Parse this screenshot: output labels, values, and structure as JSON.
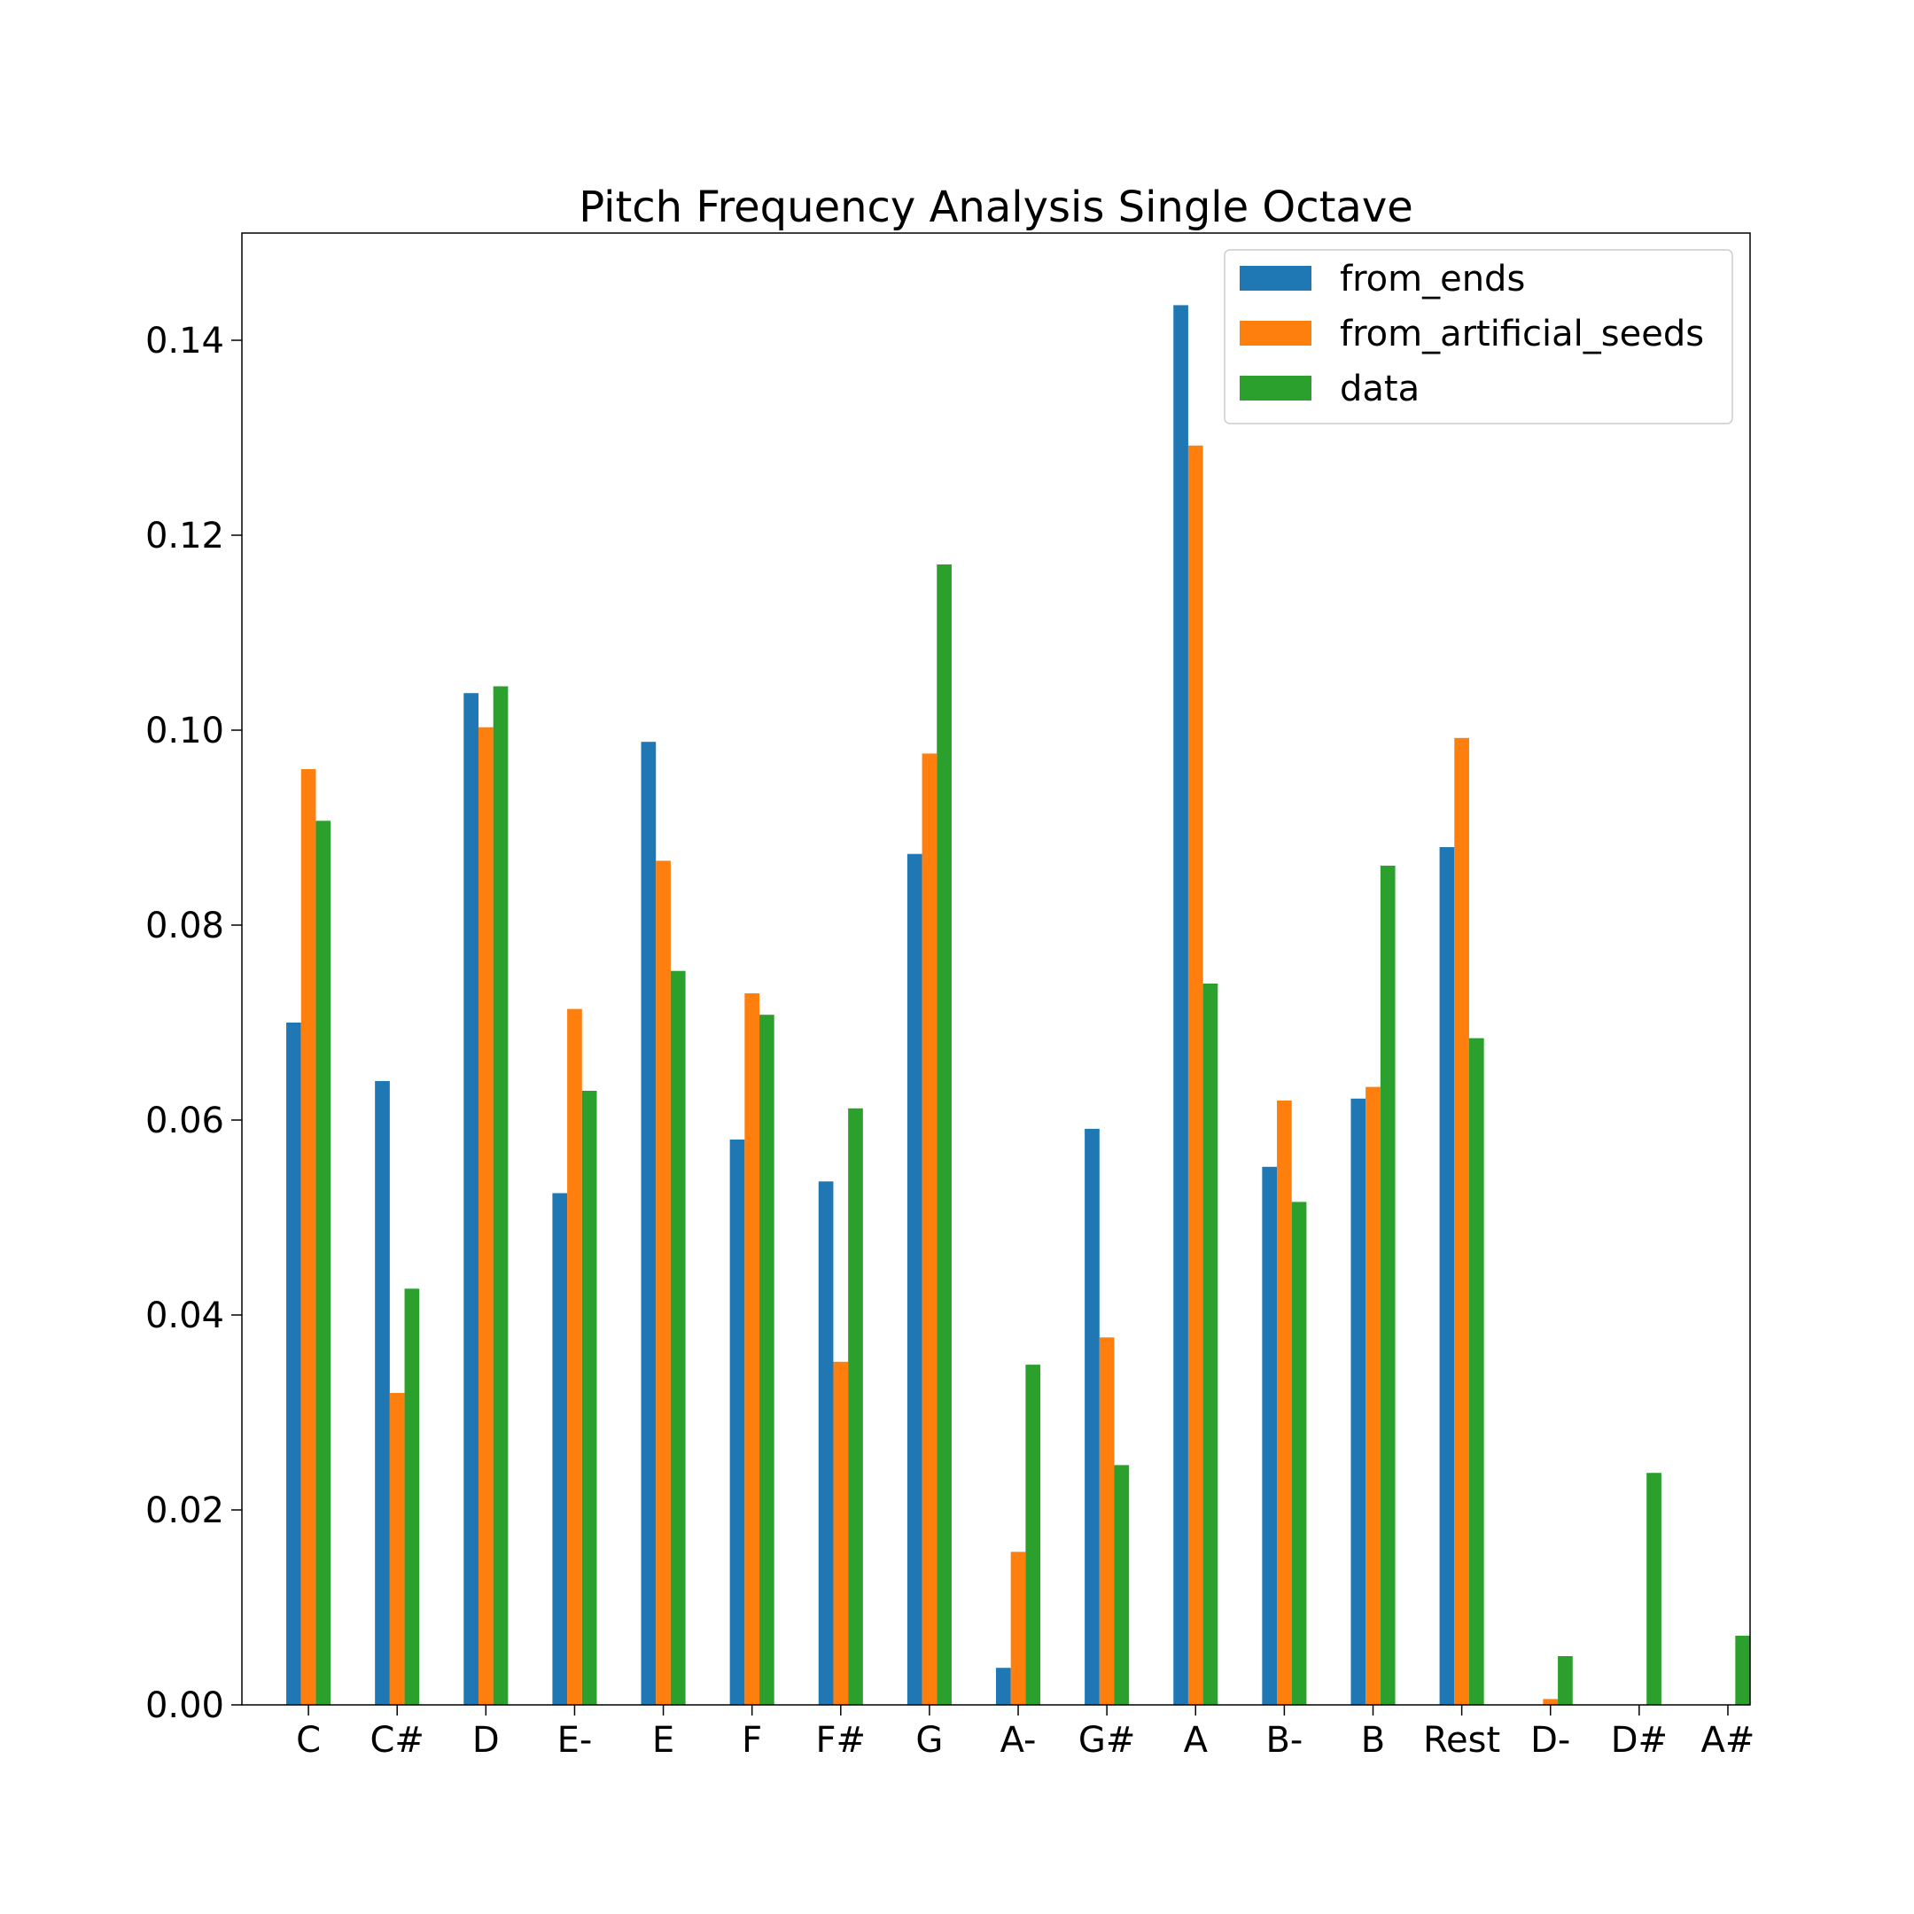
{
  "chart_data": {
    "type": "bar",
    "title": "Pitch Frequency Analysis Single Octave",
    "xlabel": "",
    "ylabel": "",
    "categories": [
      "C",
      "C#",
      "D",
      "E-",
      "E",
      "F",
      "F#",
      "G",
      "A-",
      "G#",
      "A",
      "B-",
      "B",
      "Rest",
      "D-",
      "D#",
      "A#"
    ],
    "series": [
      {
        "name": "from_ends",
        "color": "#1f77b4",
        "values": [
          0.07,
          0.064,
          0.1038,
          0.0525,
          0.0988,
          0.058,
          0.0537,
          0.0873,
          0.0038,
          0.0591,
          0.1436,
          0.0552,
          0.0622,
          0.088,
          0.0,
          0.0,
          0.0
        ]
      },
      {
        "name": "from_artificial_seeds",
        "color": "#ff7f0e",
        "values": [
          0.096,
          0.032,
          0.1003,
          0.0714,
          0.0866,
          0.073,
          0.0352,
          0.0976,
          0.0157,
          0.0377,
          0.1292,
          0.062,
          0.0634,
          0.0992,
          0.0006,
          0.0,
          0.0
        ]
      },
      {
        "name": "data",
        "color": "#2ca02c",
        "values": [
          0.0907,
          0.0427,
          0.1045,
          0.063,
          0.0753,
          0.0708,
          0.0612,
          0.117,
          0.0349,
          0.0246,
          0.074,
          0.0516,
          0.0861,
          0.0684,
          0.005,
          0.0238,
          0.0071
        ]
      }
    ],
    "yticks": [
      "0.00",
      "0.02",
      "0.04",
      "0.06",
      "0.08",
      "0.10",
      "0.12",
      "0.14"
    ],
    "ylim": [
      0,
      0.151
    ],
    "grid": false,
    "legend_position": "top-right"
  }
}
